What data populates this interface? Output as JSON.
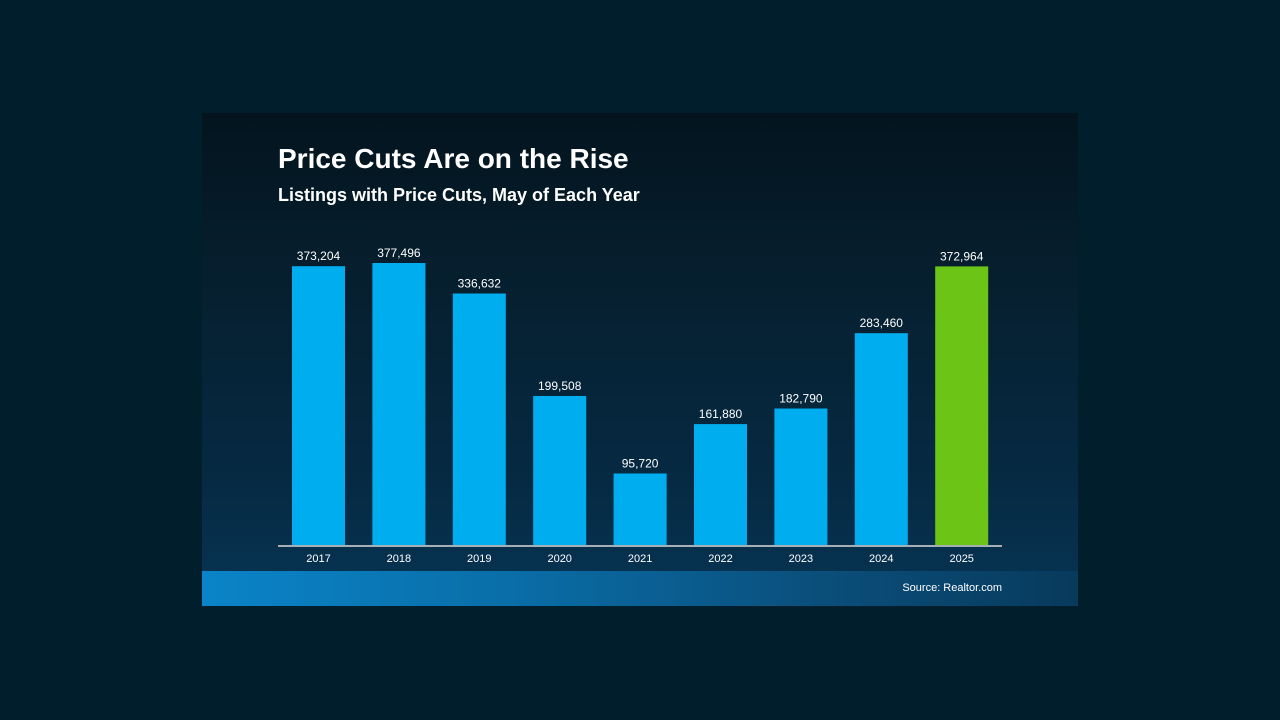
{
  "chart_data": {
    "type": "bar",
    "title": "Price Cuts Are on the Rise",
    "subtitle": "Listings with Price Cuts, May of Each Year",
    "categories": [
      "2017",
      "2018",
      "2019",
      "2020",
      "2021",
      "2022",
      "2023",
      "2024",
      "2025"
    ],
    "values": [
      373204,
      377496,
      336632,
      199508,
      95720,
      161880,
      182790,
      283460,
      372964
    ],
    "data_labels": [
      "373,204",
      "377,496",
      "336,632",
      "199,508",
      "95,720",
      "161,880",
      "182,790",
      "283,460",
      "372,964"
    ],
    "bar_colors": [
      "#00aeef",
      "#00aeef",
      "#00aeef",
      "#00aeef",
      "#00aeef",
      "#00aeef",
      "#00aeef",
      "#00aeef",
      "#6cc417"
    ],
    "xlabel": "",
    "ylabel": "",
    "ylim": [
      0,
      377496
    ],
    "grid": false,
    "source": "Source: Realtor.com"
  },
  "colors": {
    "page_background": "#011e2d",
    "bar": "#00aeef",
    "highlight_bar": "#6cc417",
    "text": "#ffffff"
  }
}
